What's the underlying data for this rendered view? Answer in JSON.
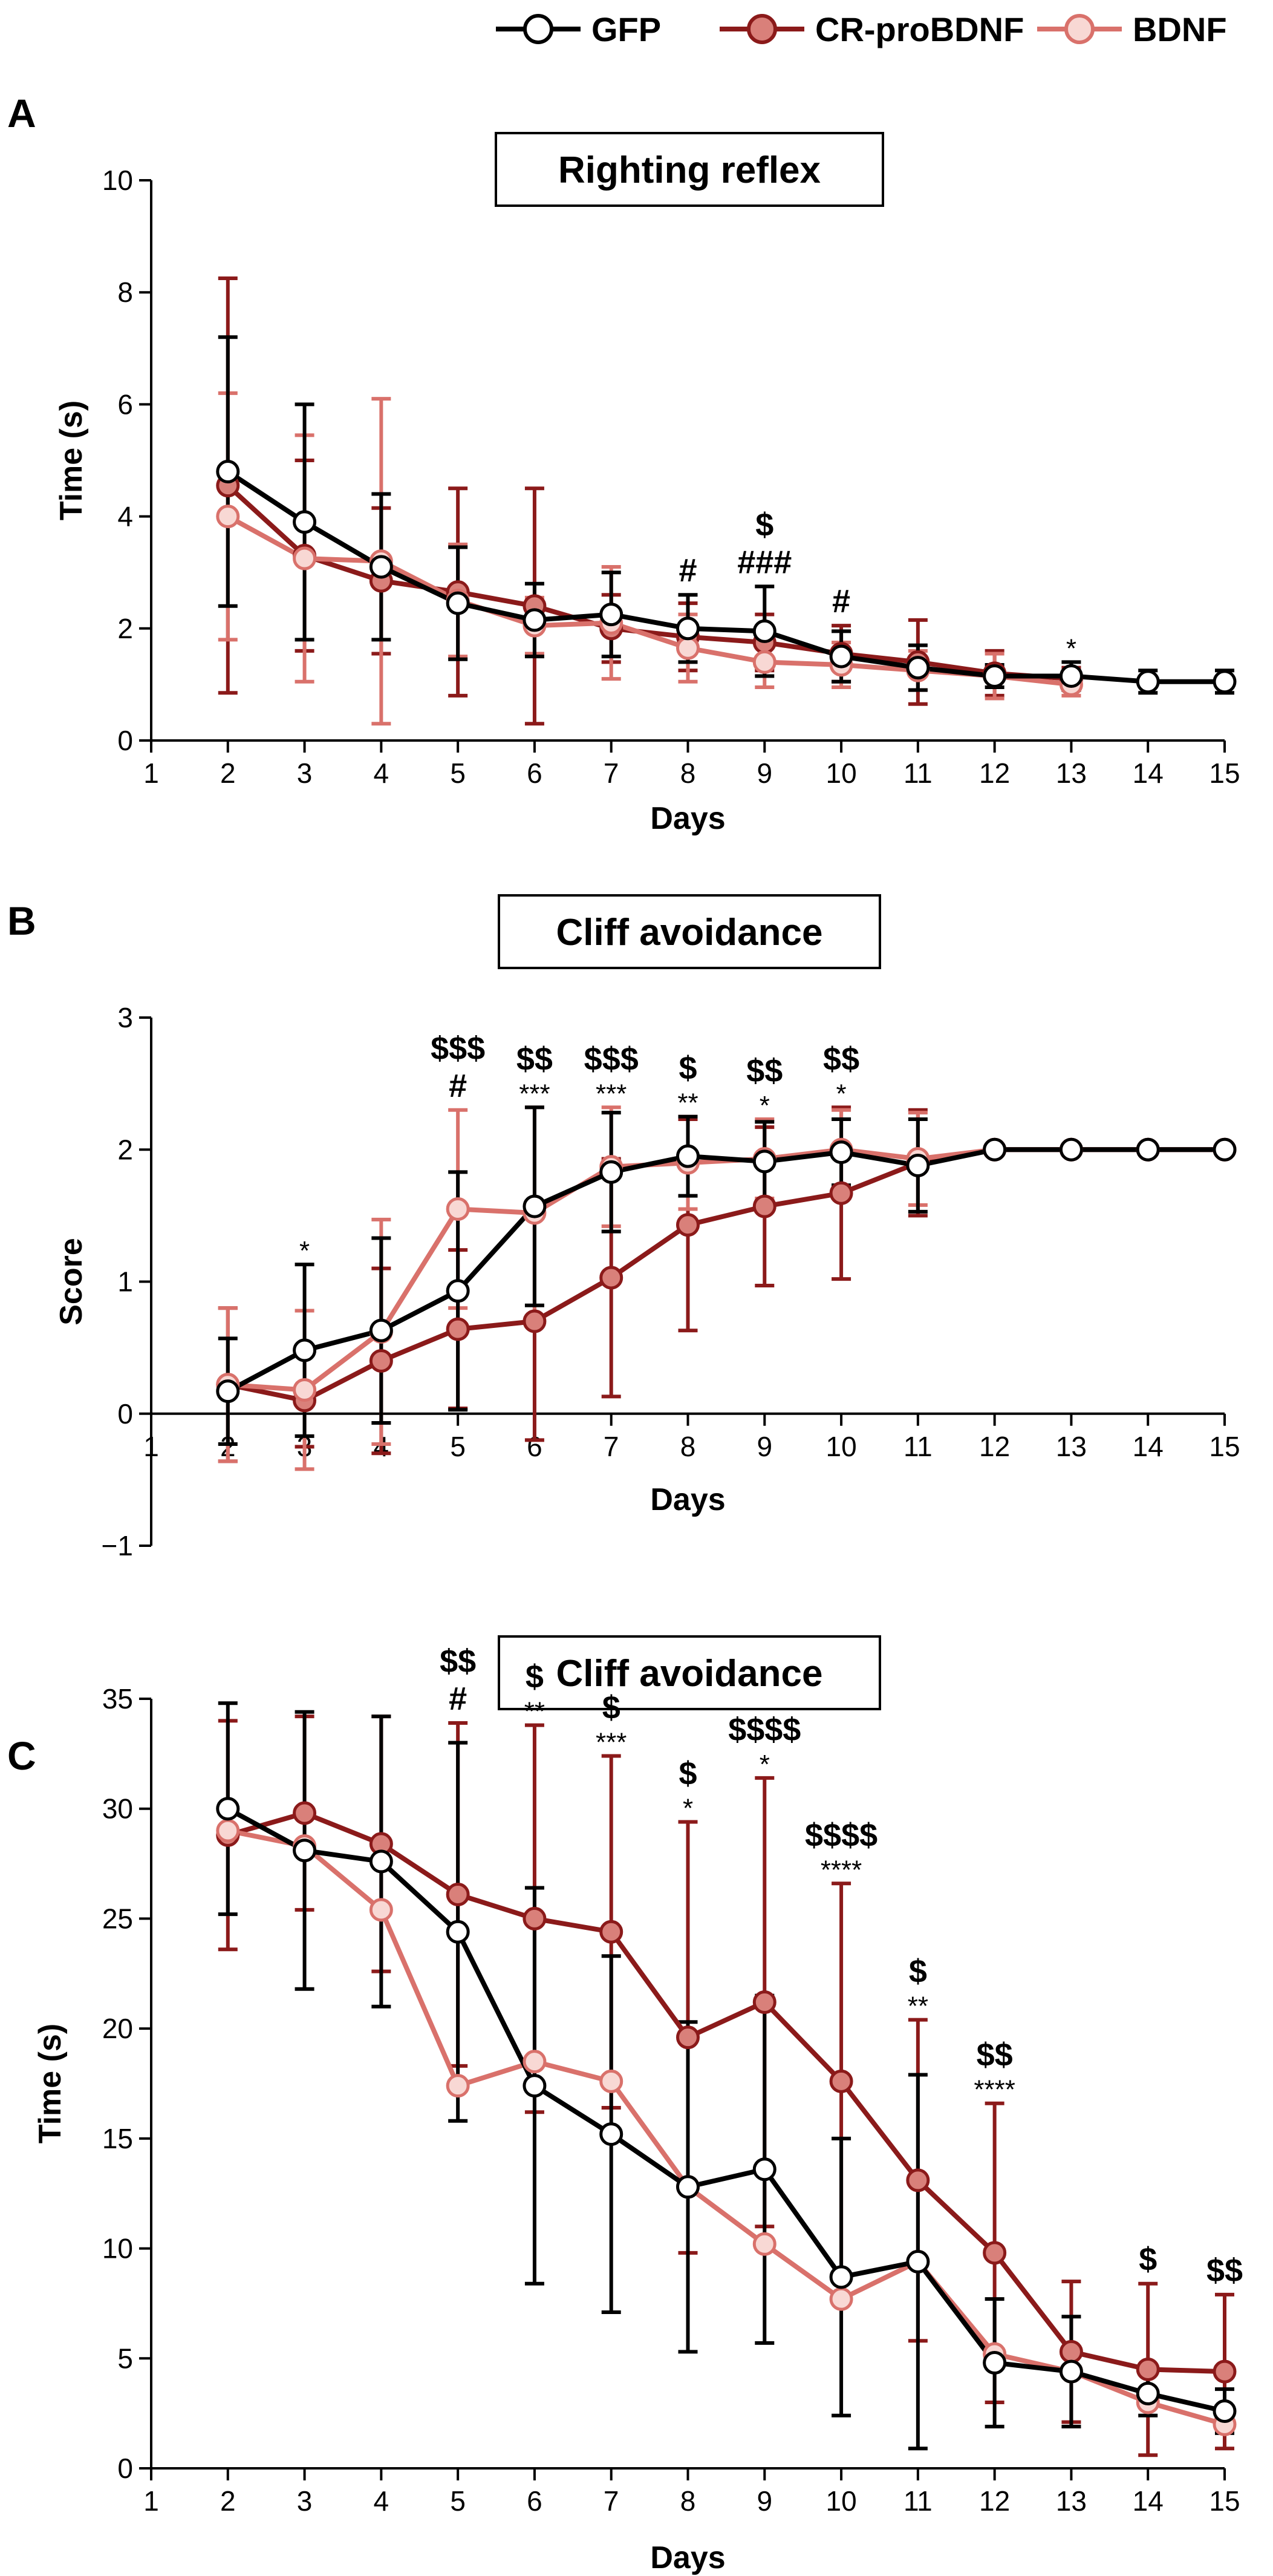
{
  "colors": {
    "GFP": "#000000",
    "CR-proBDNF": "#8B1A1A",
    "BDNF": "#D9716B",
    "CR-proBDNF_fill": "#D9807A",
    "BDNF_fill": "#F8D8D4",
    "GFP_fill": "#FFFFFF"
  },
  "legend": {
    "items": [
      "GFP",
      "CR-proBDNF",
      "BDNF"
    ]
  },
  "panel_letters": [
    "A",
    "B",
    "C"
  ],
  "chart_data": [
    {
      "type": "line",
      "title": "Righting reflex",
      "xlabel": "Days",
      "ylabel": "Time (s)",
      "xlim": [
        1,
        15
      ],
      "ylim": [
        0,
        10
      ],
      "xticks": [
        1,
        2,
        3,
        4,
        5,
        6,
        7,
        8,
        9,
        10,
        11,
        12,
        13,
        14,
        15
      ],
      "yticks": [
        0,
        2,
        4,
        6,
        8,
        10
      ],
      "x": [
        2,
        3,
        4,
        5,
        6,
        7,
        8,
        9,
        10,
        11,
        12,
        13,
        14,
        15
      ],
      "series": [
        {
          "name": "CR-proBDNF",
          "values": [
            4.55,
            3.3,
            2.85,
            2.65,
            2.4,
            2.0,
            1.85,
            1.75,
            1.55,
            1.4,
            1.2,
            1.1,
            null,
            null
          ],
          "err": [
            3.7,
            1.7,
            1.3,
            1.85,
            2.1,
            0.6,
            0.6,
            0.5,
            0.5,
            0.75,
            0.4,
            0.2,
            null,
            null
          ]
        },
        {
          "name": "BDNF",
          "values": [
            4.0,
            3.25,
            3.2,
            2.5,
            2.05,
            2.1,
            1.65,
            1.4,
            1.35,
            1.25,
            1.15,
            1.0,
            null,
            null
          ],
          "err": [
            2.2,
            2.2,
            2.9,
            1.0,
            0.5,
            1.0,
            0.6,
            0.45,
            0.4,
            0.35,
            0.4,
            0.2,
            null,
            null
          ]
        },
        {
          "name": "GFP",
          "values": [
            4.8,
            3.9,
            3.1,
            2.45,
            2.15,
            2.25,
            2.0,
            1.95,
            1.5,
            1.3,
            1.15,
            1.15,
            1.05,
            1.05
          ],
          "err": [
            2.4,
            2.1,
            1.3,
            1.0,
            0.65,
            0.75,
            0.6,
            0.8,
            0.45,
            0.4,
            0.2,
            0.25,
            0.2,
            0.2
          ]
        }
      ],
      "annotations": [
        {
          "x": 8,
          "lines": [
            "#"
          ]
        },
        {
          "x": 9,
          "lines": [
            "$",
            "###"
          ]
        },
        {
          "x": 10,
          "lines": [
            "#"
          ]
        },
        {
          "x": 13,
          "lines": [
            "*"
          ]
        }
      ]
    },
    {
      "type": "line",
      "title": "Cliff avoidance",
      "xlabel": "Days",
      "ylabel": "Score",
      "xlim": [
        1,
        15
      ],
      "ylim": [
        -1,
        3
      ],
      "xticks": [
        1,
        2,
        3,
        4,
        5,
        6,
        7,
        8,
        9,
        10,
        11,
        12,
        13,
        14,
        15
      ],
      "yticks": [
        -1,
        0,
        1,
        2,
        3
      ],
      "ytick_labels": [
        "−1",
        "0",
        "1",
        "2",
        "3"
      ],
      "x": [
        2,
        3,
        4,
        5,
        6,
        7,
        8,
        9,
        10,
        11,
        12,
        13,
        14,
        15
      ],
      "series": [
        {
          "name": "CR-proBDNF",
          "values": [
            0.22,
            0.1,
            0.4,
            0.64,
            0.7,
            1.03,
            1.43,
            1.57,
            1.67,
            1.9,
            2.0,
            2.0,
            2.0,
            2.0
          ],
          "err": [
            0.58,
            0.35,
            0.7,
            0.6,
            0.9,
            0.9,
            0.8,
            0.6,
            0.65,
            0.4,
            0,
            0,
            0,
            0
          ]
        },
        {
          "name": "BDNF",
          "values": [
            0.22,
            0.18,
            0.62,
            1.55,
            1.52,
            1.87,
            1.9,
            1.93,
            2.0,
            1.93,
            2.0,
            2.0,
            2.0,
            2.0
          ],
          "err": [
            0.58,
            0.6,
            0.85,
            0.75,
            0.8,
            0.45,
            0.35,
            0.3,
            0.3,
            0.35,
            0,
            0,
            0,
            0
          ]
        },
        {
          "name": "GFP",
          "values": [
            0.17,
            0.48,
            0.63,
            0.93,
            1.57,
            1.83,
            1.95,
            1.91,
            1.98,
            1.88,
            2.0,
            2.0,
            2.0,
            2.0
          ],
          "err": [
            0.4,
            0.65,
            0.7,
            0.9,
            0.75,
            0.45,
            0.3,
            0.3,
            0.25,
            0.35,
            0,
            0,
            0,
            0
          ]
        }
      ],
      "annotations": [
        {
          "x": 3,
          "lines": [
            "*"
          ]
        },
        {
          "x": 5,
          "lines": [
            "$$$",
            "#"
          ]
        },
        {
          "x": 6,
          "lines": [
            "$$",
            "***"
          ]
        },
        {
          "x": 7,
          "lines": [
            "$$$",
            "***"
          ]
        },
        {
          "x": 8,
          "lines": [
            "$",
            "**"
          ]
        },
        {
          "x": 9,
          "lines": [
            "$$",
            "*"
          ]
        },
        {
          "x": 10,
          "lines": [
            "$$",
            "*"
          ]
        }
      ]
    },
    {
      "type": "line",
      "title": "Cliff avoidance",
      "xlabel": "Days",
      "ylabel": "Time (s)",
      "xlim": [
        1,
        15
      ],
      "ylim": [
        0,
        35
      ],
      "xticks": [
        1,
        2,
        3,
        4,
        5,
        6,
        7,
        8,
        9,
        10,
        11,
        12,
        13,
        14,
        15
      ],
      "yticks": [
        0,
        5,
        10,
        15,
        20,
        25,
        30,
        35
      ],
      "x": [
        2,
        3,
        4,
        5,
        6,
        7,
        8,
        9,
        10,
        11,
        12,
        13,
        14,
        15
      ],
      "series": [
        {
          "name": "CR-proBDNF",
          "values": [
            28.8,
            29.8,
            28.4,
            26.1,
            25.0,
            24.4,
            19.6,
            21.2,
            17.6,
            13.1,
            9.8,
            5.3,
            4.5,
            4.4
          ],
          "err": [
            5.2,
            4.4,
            5.8,
            7.8,
            8.8,
            8.0,
            9.8,
            10.2,
            9.0,
            7.3,
            6.8,
            3.2,
            3.9,
            3.5
          ]
        },
        {
          "name": "BDNF",
          "values": [
            29.0,
            28.3,
            25.4,
            17.4,
            18.5,
            17.6,
            12.8,
            10.2,
            7.7,
            9.4,
            5.2,
            4.4,
            3.0,
            2.0
          ]
        },
        {
          "name": "GFP",
          "values": [
            30.0,
            28.1,
            27.6,
            24.4,
            17.4,
            15.2,
            12.8,
            13.6,
            8.7,
            9.4,
            4.8,
            4.4,
            3.4,
            2.6
          ],
          "err": [
            4.8,
            6.3,
            6.6,
            8.6,
            9.0,
            8.1,
            7.5,
            7.9,
            6.3,
            8.5,
            2.9,
            2.5,
            1.0,
            1.0
          ]
        }
      ],
      "annotations": [
        {
          "x": 5,
          "lines": [
            "$$",
            "#"
          ]
        },
        {
          "x": 6,
          "lines": [
            "$",
            "**"
          ]
        },
        {
          "x": 7,
          "lines": [
            "$",
            "***"
          ]
        },
        {
          "x": 8,
          "lines": [
            "$",
            "*"
          ]
        },
        {
          "x": 9,
          "lines": [
            "$$$$",
            "*"
          ]
        },
        {
          "x": 10,
          "lines": [
            "$$$$",
            "****"
          ]
        },
        {
          "x": 11,
          "lines": [
            "$",
            "**"
          ]
        },
        {
          "x": 12,
          "lines": [
            "$$",
            "****"
          ]
        },
        {
          "x": 14,
          "lines": [
            "$"
          ]
        },
        {
          "x": 15,
          "lines": [
            "$$"
          ]
        }
      ]
    }
  ]
}
